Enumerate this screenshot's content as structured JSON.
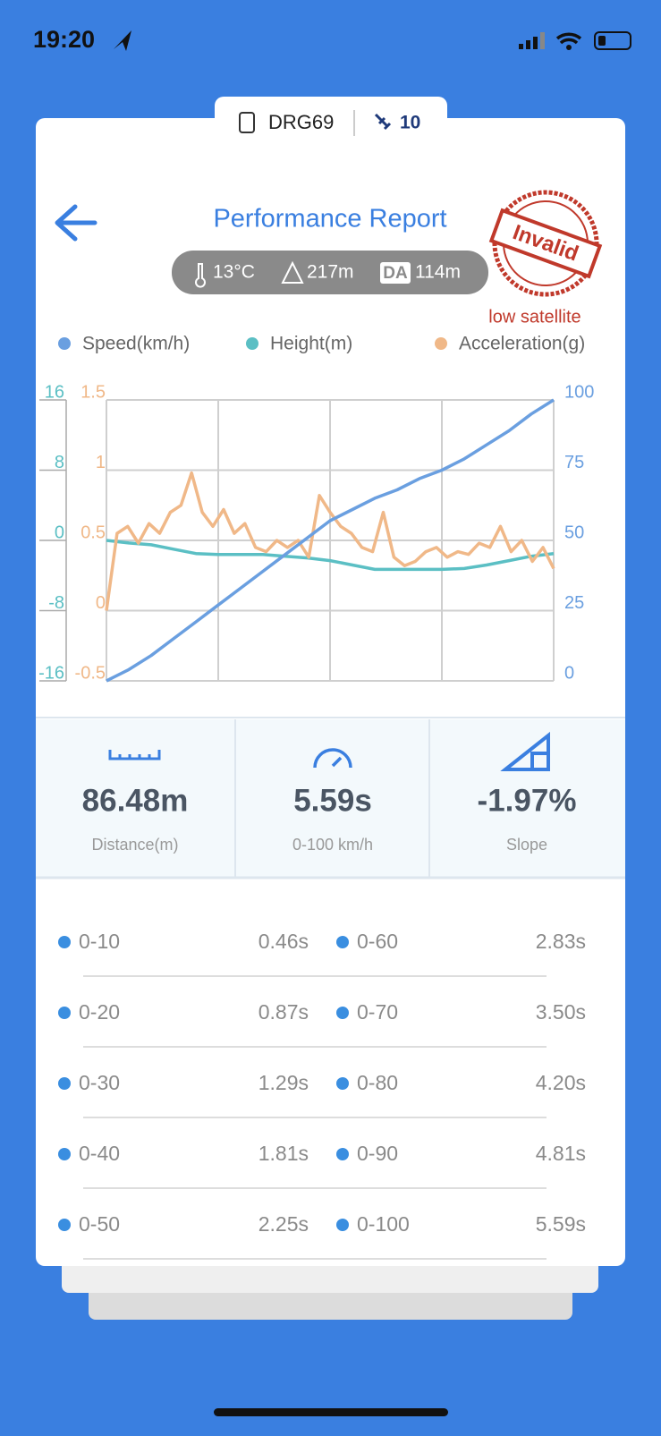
{
  "status_bar": {
    "time": "19:20"
  },
  "device": {
    "name": "DRG69",
    "satellites": "10"
  },
  "header": {
    "title": "Performance Report",
    "stamp": "Invalid",
    "stamp_note": "low satellite"
  },
  "conditions": {
    "temperature": "13°C",
    "altitude": "217m",
    "da_label": "DA",
    "density_altitude": "114m"
  },
  "chart_data": {
    "type": "line",
    "grid": true,
    "series": [
      {
        "name": "Speed(km/h)",
        "color": "#6a9fe0",
        "ylim": [
          0,
          100
        ],
        "yticks": [
          0,
          25,
          50,
          75,
          100
        ],
        "values": [
          0,
          4,
          9,
          15,
          21,
          27,
          33,
          39,
          45,
          51,
          57,
          61,
          65,
          68,
          72,
          75,
          79,
          84,
          89,
          95,
          100
        ]
      },
      {
        "name": "Height(m)",
        "color": "#5bbfc4",
        "ylim": [
          -16,
          16
        ],
        "yticks": [
          -16,
          -8,
          0,
          8,
          16
        ],
        "values": [
          0,
          -0.3,
          -0.5,
          -1,
          -1.5,
          -1.6,
          -1.6,
          -1.6,
          -1.8,
          -2,
          -2.3,
          -2.8,
          -3.3,
          -3.3,
          -3.3,
          -3.3,
          -3.2,
          -2.8,
          -2.3,
          -1.8,
          -1.5
        ]
      },
      {
        "name": "Acceleration(g)",
        "color": "#f0b888",
        "ylim": [
          -0.5,
          1.5
        ],
        "yticks": [
          -0.5,
          0,
          0.5,
          1,
          1.5
        ],
        "values": [
          0,
          0.55,
          0.6,
          0.48,
          0.62,
          0.55,
          0.7,
          0.75,
          0.98,
          0.7,
          0.6,
          0.72,
          0.55,
          0.62,
          0.45,
          0.42,
          0.5,
          0.45,
          0.5,
          0.38,
          0.82,
          0.7,
          0.6,
          0.55,
          0.45,
          0.42,
          0.7,
          0.38,
          0.32,
          0.35,
          0.42,
          0.45,
          0.38,
          0.42,
          0.4,
          0.48,
          0.45,
          0.6,
          0.42,
          0.5,
          0.35,
          0.45,
          0.3
        ]
      }
    ]
  },
  "stats": [
    {
      "value": "86.48m",
      "label": "Distance(m)"
    },
    {
      "value": "5.59s",
      "label": "0-100 km/h"
    },
    {
      "value": "-1.97%",
      "label": "Slope"
    }
  ],
  "splits": [
    {
      "range": "0-10",
      "time": "0.46s"
    },
    {
      "range": "0-60",
      "time": "2.83s"
    },
    {
      "range": "0-20",
      "time": "0.87s"
    },
    {
      "range": "0-70",
      "time": "3.50s"
    },
    {
      "range": "0-30",
      "time": "1.29s"
    },
    {
      "range": "0-80",
      "time": "4.20s"
    },
    {
      "range": "0-40",
      "time": "1.81s"
    },
    {
      "range": "0-90",
      "time": "4.81s"
    },
    {
      "range": "0-50",
      "time": "2.25s"
    },
    {
      "range": "0-100",
      "time": "5.59s"
    }
  ]
}
